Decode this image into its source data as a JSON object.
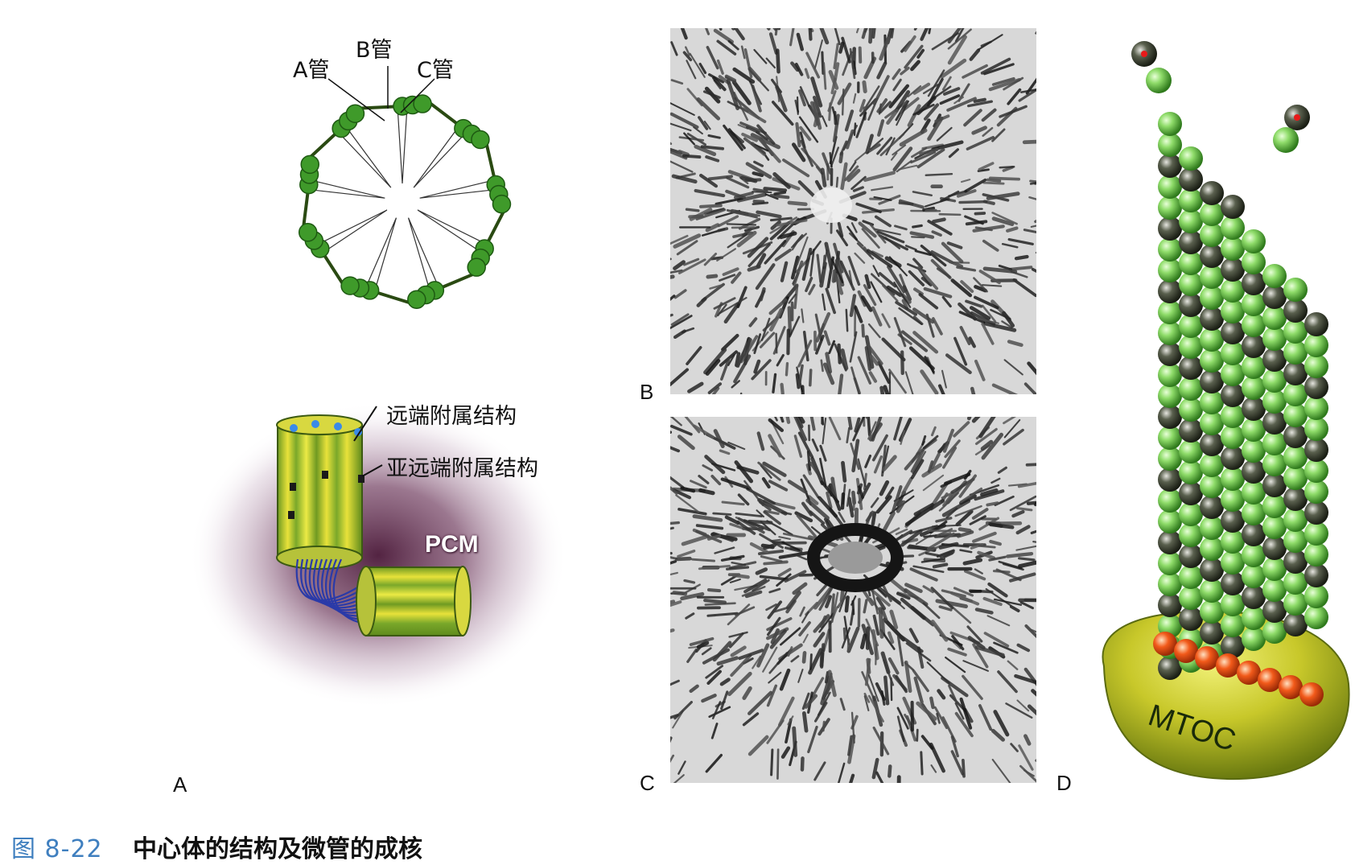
{
  "figure": {
    "caption_number": "图 8-22",
    "caption_text": "中心体的结构及微管的成核"
  },
  "panel_a": {
    "label": "A",
    "tube_labels": {
      "a": "A管",
      "b": "B管",
      "c": "C管"
    },
    "distal_appendage": "远端附属结构",
    "subdistal_appendage": "亚远端附属结构",
    "pcm": "PCM"
  },
  "panel_b": {
    "label": "B"
  },
  "panel_c": {
    "label": "C"
  },
  "panel_d": {
    "label": "D",
    "mtoc": "MTOC"
  },
  "colors": {
    "tubule_green": "#3f9a2a",
    "tubule_dark": "#1e5a12",
    "barrel_yellow": "#e8e23a",
    "barrel_green": "#7aa82a",
    "linker_blue": "#2a3aa8",
    "pcm_purple": "#6e3a5e",
    "light_green": "#8fdc6a",
    "dark_gray": "#4a5040",
    "gamma_orange": "#f25a1a",
    "mtoc_yellow": "#c8c82a",
    "caption_blue": "#3f7fbf"
  }
}
